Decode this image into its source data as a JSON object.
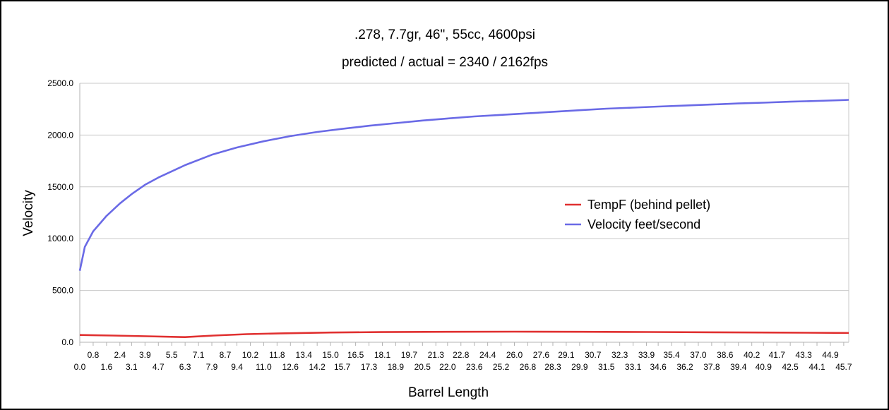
{
  "chart_data": {
    "type": "line",
    "title": ".278, 7.7gr, 46\", 55cc, 4600psi",
    "subtitle": "predicted / actual = 2340 / 2162fps",
    "xlabel": "Barrel Length",
    "ylabel": "Velocity",
    "ylim": [
      0,
      2500
    ],
    "yticks": [
      "0.0",
      "500.0",
      "1000.0",
      "1500.0",
      "2000.0",
      "2500.0"
    ],
    "xlim": [
      0,
      46
    ],
    "xticks": [
      "0.0",
      "0.8",
      "1.6",
      "2.4",
      "3.1",
      "3.9",
      "4.7",
      "5.5",
      "6.3",
      "7.1",
      "7.9",
      "8.7",
      "9.4",
      "10.2",
      "11.0",
      "11.8",
      "12.6",
      "13.4",
      "14.2",
      "15.0",
      "15.7",
      "16.5",
      "17.3",
      "18.1",
      "18.9",
      "19.7",
      "20.5",
      "21.3",
      "22.0",
      "22.8",
      "23.6",
      "24.4",
      "25.2",
      "26.0",
      "26.8",
      "27.6",
      "28.3",
      "29.1",
      "29.9",
      "30.7",
      "31.5",
      "32.3",
      "33.1",
      "33.9",
      "34.6",
      "35.4",
      "36.2",
      "37.0",
      "37.8",
      "38.6",
      "39.4",
      "40.2",
      "40.9",
      "41.7",
      "42.5",
      "43.3",
      "44.1",
      "44.9",
      "45.7"
    ],
    "grid": true,
    "legend_position": "right",
    "series": [
      {
        "name": "TempF (behind pellet)",
        "color": "#e03030",
        "x": [
          0,
          2,
          4,
          6.3,
          8,
          10,
          12,
          15,
          18,
          22,
          26,
          30,
          34,
          38,
          42,
          46
        ],
        "y": [
          70,
          65,
          58,
          50,
          65,
          78,
          86,
          94,
          98,
          101,
          102,
          101,
          99,
          96,
          93,
          90
        ]
      },
      {
        "name": "Velocity feet/second",
        "color": "#6a6ae6",
        "x": [
          0,
          0.3,
          0.8,
          1.6,
          2.4,
          3.1,
          3.9,
          4.7,
          5.5,
          6.3,
          7.9,
          9.4,
          11.0,
          12.6,
          14.2,
          15.7,
          17.3,
          18.9,
          20.5,
          22.0,
          23.6,
          25.2,
          26.8,
          28.3,
          29.9,
          31.5,
          33.1,
          34.6,
          36.2,
          37.8,
          39.4,
          40.9,
          42.5,
          44.1,
          45.7,
          46.0
        ],
        "y": [
          690,
          920,
          1070,
          1220,
          1340,
          1430,
          1520,
          1590,
          1650,
          1710,
          1810,
          1880,
          1940,
          1990,
          2030,
          2060,
          2090,
          2115,
          2140,
          2160,
          2180,
          2195,
          2210,
          2225,
          2240,
          2255,
          2265,
          2275,
          2285,
          2295,
          2305,
          2313,
          2322,
          2330,
          2338,
          2340
        ]
      }
    ]
  }
}
